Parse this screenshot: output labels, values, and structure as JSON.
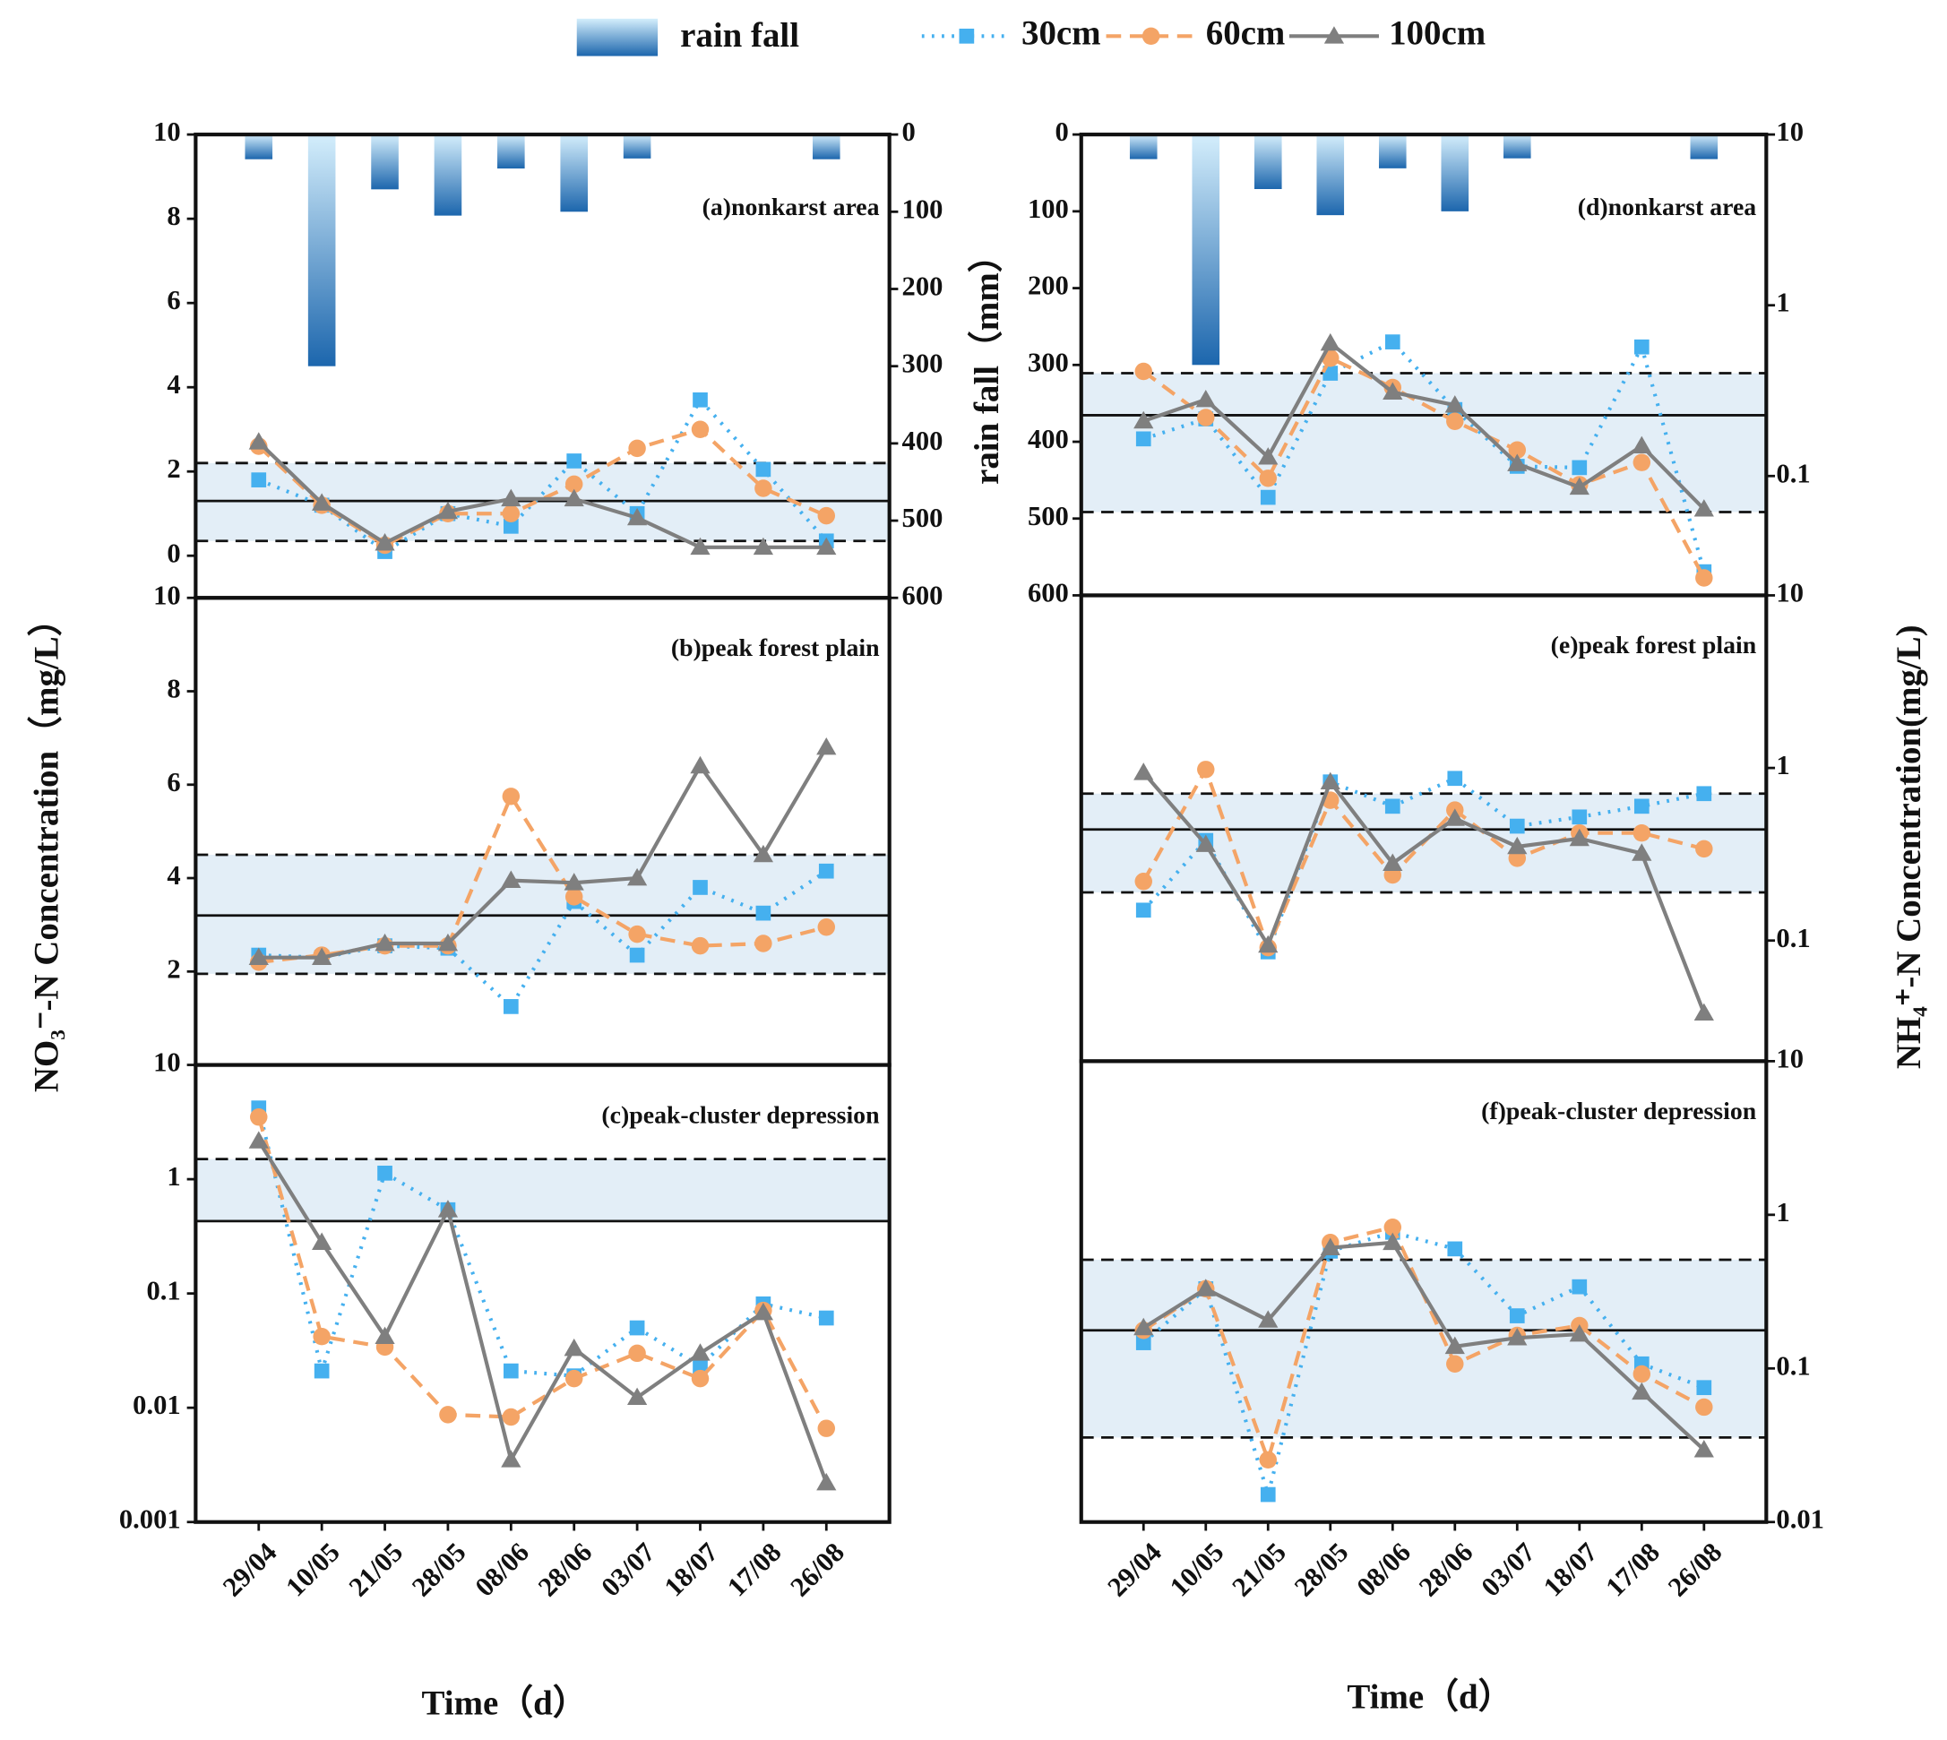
{
  "chart_data": [
    {
      "type": "line",
      "annotation": "(a)nonkarst area",
      "ylim": [
        -1,
        10
      ],
      "yticks": [
        0,
        2,
        4,
        6,
        8,
        10
      ],
      "log": false,
      "band": {
        "lower": 0.35,
        "mean": 1.3,
        "upper": 2.2
      },
      "rain": {
        "name": "rain fall",
        "values": [
          32,
          300,
          71,
          105,
          44,
          100,
          31,
          0,
          0,
          32
        ]
      },
      "y2lim": [
        600,
        0
      ],
      "y2ticks": [
        0,
        100,
        200,
        300,
        400,
        500,
        600
      ],
      "y2label": "rain fall（mm）",
      "series": [
        {
          "name": "30cm",
          "color": "#45b0ef",
          "dash": "dotted",
          "marker": "square",
          "values": [
            1.8,
            1.2,
            0.1,
            1.0,
            0.7,
            2.25,
            1.0,
            3.7,
            2.05,
            0.35
          ]
        },
        {
          "name": "60cm",
          "color": "#f4a466",
          "dash": "dashed",
          "marker": "circle",
          "values": [
            2.6,
            1.2,
            0.25,
            1.0,
            1.0,
            1.7,
            2.55,
            3.0,
            1.6,
            0.95
          ]
        },
        {
          "name": "100cm",
          "color": "#7f7f7f",
          "dash": "solid",
          "marker": "triangle",
          "values": [
            2.7,
            1.25,
            0.3,
            1.05,
            1.35,
            1.35,
            0.9,
            0.2,
            0.2,
            0.2
          ]
        }
      ]
    },
    {
      "type": "line",
      "annotation": "(b)peak forest plain",
      "ylim": [
        0,
        10
      ],
      "yticks": [
        2,
        4,
        6,
        8,
        10
      ],
      "log": false,
      "ylabel": "NO₃⁻-N Concentration（mg/L）",
      "band": {
        "lower": 1.95,
        "mean": 3.2,
        "upper": 4.5
      },
      "series": [
        {
          "color": "#45b0ef",
          "dash": "dotted",
          "marker": "square",
          "values": [
            2.35,
            2.3,
            2.55,
            2.5,
            1.25,
            3.5,
            2.35,
            3.8,
            3.25,
            4.15
          ]
        },
        {
          "color": "#f4a466",
          "dash": "dashed",
          "marker": "circle",
          "values": [
            2.2,
            2.35,
            2.55,
            2.55,
            5.75,
            3.6,
            2.8,
            2.55,
            2.6,
            2.95
          ]
        },
        {
          "color": "#7f7f7f",
          "dash": "solid",
          "marker": "triangle",
          "values": [
            2.3,
            2.3,
            2.6,
            2.6,
            3.95,
            3.9,
            4.0,
            6.4,
            4.5,
            6.8
          ]
        }
      ]
    },
    {
      "type": "line",
      "annotation": "(c)peak-cluster depression",
      "ylim": [
        0.001,
        10
      ],
      "yticks": [
        0.001,
        0.01,
        0.1,
        1,
        10
      ],
      "log": true,
      "xlabel": "Time（d）",
      "categories": [
        "29/04",
        "10/05",
        "21/05",
        "28/05",
        "08/06",
        "28/06",
        "03/07",
        "18/07",
        "17/08",
        "26/08"
      ],
      "band": {
        "mean": 0.43,
        "upper": 1.5
      },
      "series": [
        {
          "color": "#45b0ef",
          "dash": "dotted",
          "marker": "square",
          "values": [
            4.2,
            0.021,
            1.13,
            0.54,
            0.021,
            0.019,
            0.05,
            0.023,
            0.081,
            0.061
          ]
        },
        {
          "color": "#f4a466",
          "dash": "dashed",
          "marker": "circle",
          "values": [
            3.5,
            0.042,
            0.034,
            0.0087,
            0.0083,
            0.018,
            0.03,
            0.018,
            0.071,
            0.0066
          ]
        },
        {
          "color": "#7f7f7f",
          "dash": "solid",
          "marker": "triangle",
          "values": [
            2.16,
            0.28,
            0.042,
            0.54,
            0.0035,
            0.033,
            0.0123,
            0.03,
            0.068,
            0.0022
          ]
        }
      ]
    },
    {
      "type": "line",
      "annotation": "(d)nonkarst area",
      "ylim": [
        0.02,
        10
      ],
      "yticks": [
        10,
        1,
        0.1
      ],
      "log": true,
      "band": {
        "lower": 0.0615,
        "mean": 0.227,
        "upper": 0.4
      },
      "rain": {
        "values": [
          32,
          300,
          71,
          105,
          44,
          100,
          31,
          0,
          0,
          32
        ]
      },
      "y2lim": [
        600,
        0
      ],
      "y2ticks": [
        0,
        100,
        200,
        300,
        400,
        500,
        600
      ],
      "series": [
        {
          "color": "#45b0ef",
          "dash": "dotted",
          "marker": "square",
          "values": [
            0.165,
            0.216,
            0.075,
            0.4,
            0.61,
            0.245,
            0.114,
            0.112,
            0.57,
            0.0275
          ]
        },
        {
          "color": "#f4a466",
          "dash": "dashed",
          "marker": "circle",
          "values": [
            0.41,
            0.22,
            0.097,
            0.49,
            0.33,
            0.209,
            0.142,
            0.089,
            0.12,
            0.0253
          ]
        },
        {
          "color": "#7f7f7f",
          "dash": "solid",
          "marker": "triangle",
          "values": [
            0.21,
            0.28,
            0.129,
            0.6,
            0.31,
            0.26,
            0.118,
            0.086,
            0.15,
            0.064
          ]
        }
      ]
    },
    {
      "type": "line",
      "annotation": "(e)peak forest plain",
      "ylim": [
        0.02,
        10
      ],
      "yticks": [
        10,
        1,
        0.1
      ],
      "log": true,
      "ylabel": "NH₄⁺-N Concentration(mg/L)",
      "band": {
        "lower": 0.19,
        "mean": 0.44,
        "upper": 0.71
      },
      "series": [
        {
          "color": "#45b0ef",
          "dash": "dotted",
          "marker": "square",
          "values": [
            0.15,
            0.38,
            0.086,
            0.83,
            0.6,
            0.87,
            0.46,
            0.52,
            0.6,
            0.71
          ]
        },
        {
          "color": "#f4a466",
          "dash": "dashed",
          "marker": "circle",
          "values": [
            0.22,
            0.98,
            0.091,
            0.65,
            0.24,
            0.57,
            0.3,
            0.42,
            0.42,
            0.34
          ]
        },
        {
          "color": "#7f7f7f",
          "dash": "solid",
          "marker": "triangle",
          "values": [
            0.94,
            0.36,
            0.094,
            0.83,
            0.28,
            0.51,
            0.35,
            0.39,
            0.32,
            0.038
          ]
        }
      ]
    },
    {
      "type": "line",
      "annotation": "(f)peak-cluster depression",
      "ylim": [
        0.01,
        10
      ],
      "yticks": [
        10,
        1,
        0.1,
        0.01
      ],
      "log": true,
      "xlabel": "Time（d）",
      "categories": [
        "29/04",
        "10/05",
        "21/05",
        "28/05",
        "08/06",
        "28/06",
        "03/07",
        "18/07",
        "17/08",
        "26/08"
      ],
      "band": {
        "lower": 0.0355,
        "mean": 0.177,
        "upper": 0.51
      },
      "series": [
        {
          "color": "#45b0ef",
          "dash": "dotted",
          "marker": "square",
          "values": [
            0.147,
            0.33,
            0.0151,
            0.58,
            0.77,
            0.6,
            0.22,
            0.34,
            0.107,
            0.075
          ]
        },
        {
          "color": "#f4a466",
          "dash": "dashed",
          "marker": "circle",
          "values": [
            0.177,
            0.33,
            0.0254,
            0.66,
            0.83,
            0.107,
            0.164,
            0.19,
            0.092,
            0.056
          ]
        },
        {
          "color": "#7f7f7f",
          "dash": "solid",
          "marker": "triangle",
          "values": [
            0.184,
            0.33,
            0.206,
            0.61,
            0.66,
            0.139,
            0.158,
            0.167,
            0.07,
            0.0295
          ]
        }
      ]
    }
  ]
}
